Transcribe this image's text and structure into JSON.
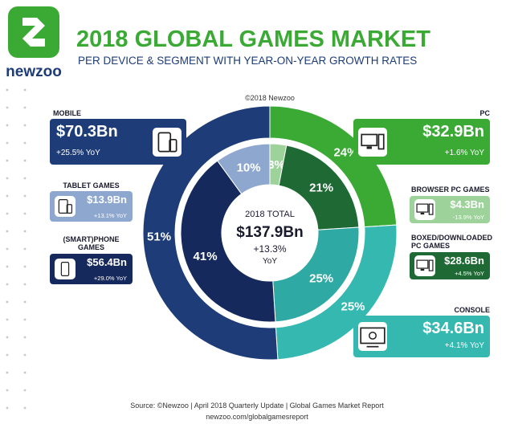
{
  "header": {
    "logo_text": "newzoo",
    "title": "2018 GLOBAL GAMES MARKET",
    "subtitle": "PER DEVICE & SEGMENT WITH YEAR-ON-YEAR GROWTH RATES",
    "copyright": "©2018 Newzoo"
  },
  "chart_data": {
    "type": "donut",
    "rings": [
      {
        "categories": [
          "PC",
          "CONSOLE",
          "MOBILE"
        ],
        "values": [
          24,
          25,
          51
        ],
        "value_labels": [
          "24%",
          "25%",
          "51%"
        ],
        "colors": [
          "#3aaa35",
          "#35b8b0",
          "#1d3c78"
        ],
        "revenue_labels": [
          "$32.9Bn",
          "$34.6Bn",
          "$70.3Bn"
        ],
        "growth_labels": [
          "+1.6% YoY",
          "+4.1% YoY",
          "+25.5% YoY"
        ]
      },
      {
        "categories": [
          "BROWSER PC GAMES",
          "BOXED/DOWNLOADED PC GAMES",
          null,
          "(SMART)PHONE GAMES",
          "TABLET GAMES"
        ],
        "values": [
          3,
          21,
          25,
          41,
          10
        ],
        "value_labels": [
          "3%",
          "21%",
          "25%",
          "41%",
          "10%"
        ],
        "colors": [
          "#9dd39a",
          "#1f6a34",
          "#2fa9a3",
          "#15295c",
          "#8ea7cf"
        ],
        "revenue_labels": [
          "$4.3Bn",
          "$28.6Bn",
          null,
          "$56.4Bn",
          "$13.9Bn"
        ],
        "growth_labels": [
          "-13.9% YoY",
          "+4.5% YoY",
          null,
          "+29.0% YoY",
          "+13.1% YoY"
        ]
      }
    ],
    "center": {
      "title": "2018 TOTAL",
      "value_label": "$137.9Bn",
      "growth_label": "+13.3%",
      "growth_unit": "YoY"
    }
  },
  "footer": {
    "source": "Source: ©Newzoo | April 2018 Quarterly Update | Global Games Market Report",
    "url": "newzoo.com/globalgamesreport"
  }
}
